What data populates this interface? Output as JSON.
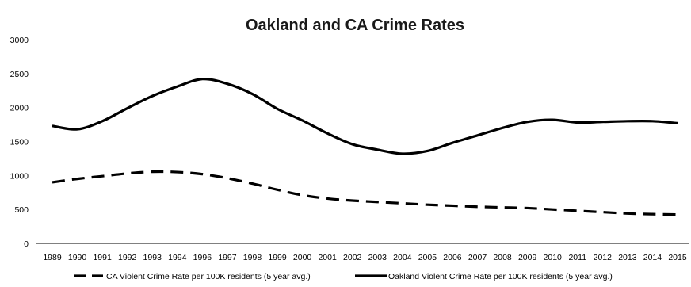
{
  "chart_data": {
    "type": "line",
    "title": "Oakland and CA Crime Rates",
    "xlabel": "",
    "ylabel": "",
    "x": [
      "1989",
      "1990",
      "1991",
      "1992",
      "1993",
      "1994",
      "1996",
      "1997",
      "1998",
      "1999",
      "2000",
      "2001",
      "2002",
      "2003",
      "2004",
      "2005",
      "2006",
      "2007",
      "2008",
      "2009",
      "2010",
      "2011",
      "2012",
      "2013",
      "2014",
      "2015"
    ],
    "ylim": [
      0,
      3000
    ],
    "yticks": [
      0,
      500,
      1000,
      1500,
      2000,
      2500,
      3000
    ],
    "grid": false,
    "legend_position": "bottom",
    "series": [
      {
        "name": "CA Violent Crime Rate per 100K residents (5 year avg.)",
        "style": "dashed",
        "color": "#000000",
        "values": [
          900,
          950,
          990,
          1030,
          1055,
          1050,
          1020,
          960,
          880,
          790,
          710,
          660,
          630,
          610,
          590,
          570,
          555,
          540,
          530,
          520,
          500,
          480,
          460,
          440,
          430,
          425
        ]
      },
      {
        "name": "Oakland Violent Crime Rate per 100K residents (5 year avg.)",
        "style": "solid",
        "color": "#000000",
        "values": [
          1730,
          1680,
          1800,
          1990,
          2170,
          2310,
          2420,
          2350,
          2200,
          1980,
          1810,
          1620,
          1460,
          1380,
          1320,
          1360,
          1480,
          1590,
          1700,
          1790,
          1820,
          1780,
          1790,
          1800,
          1800,
          1770
        ]
      }
    ]
  }
}
